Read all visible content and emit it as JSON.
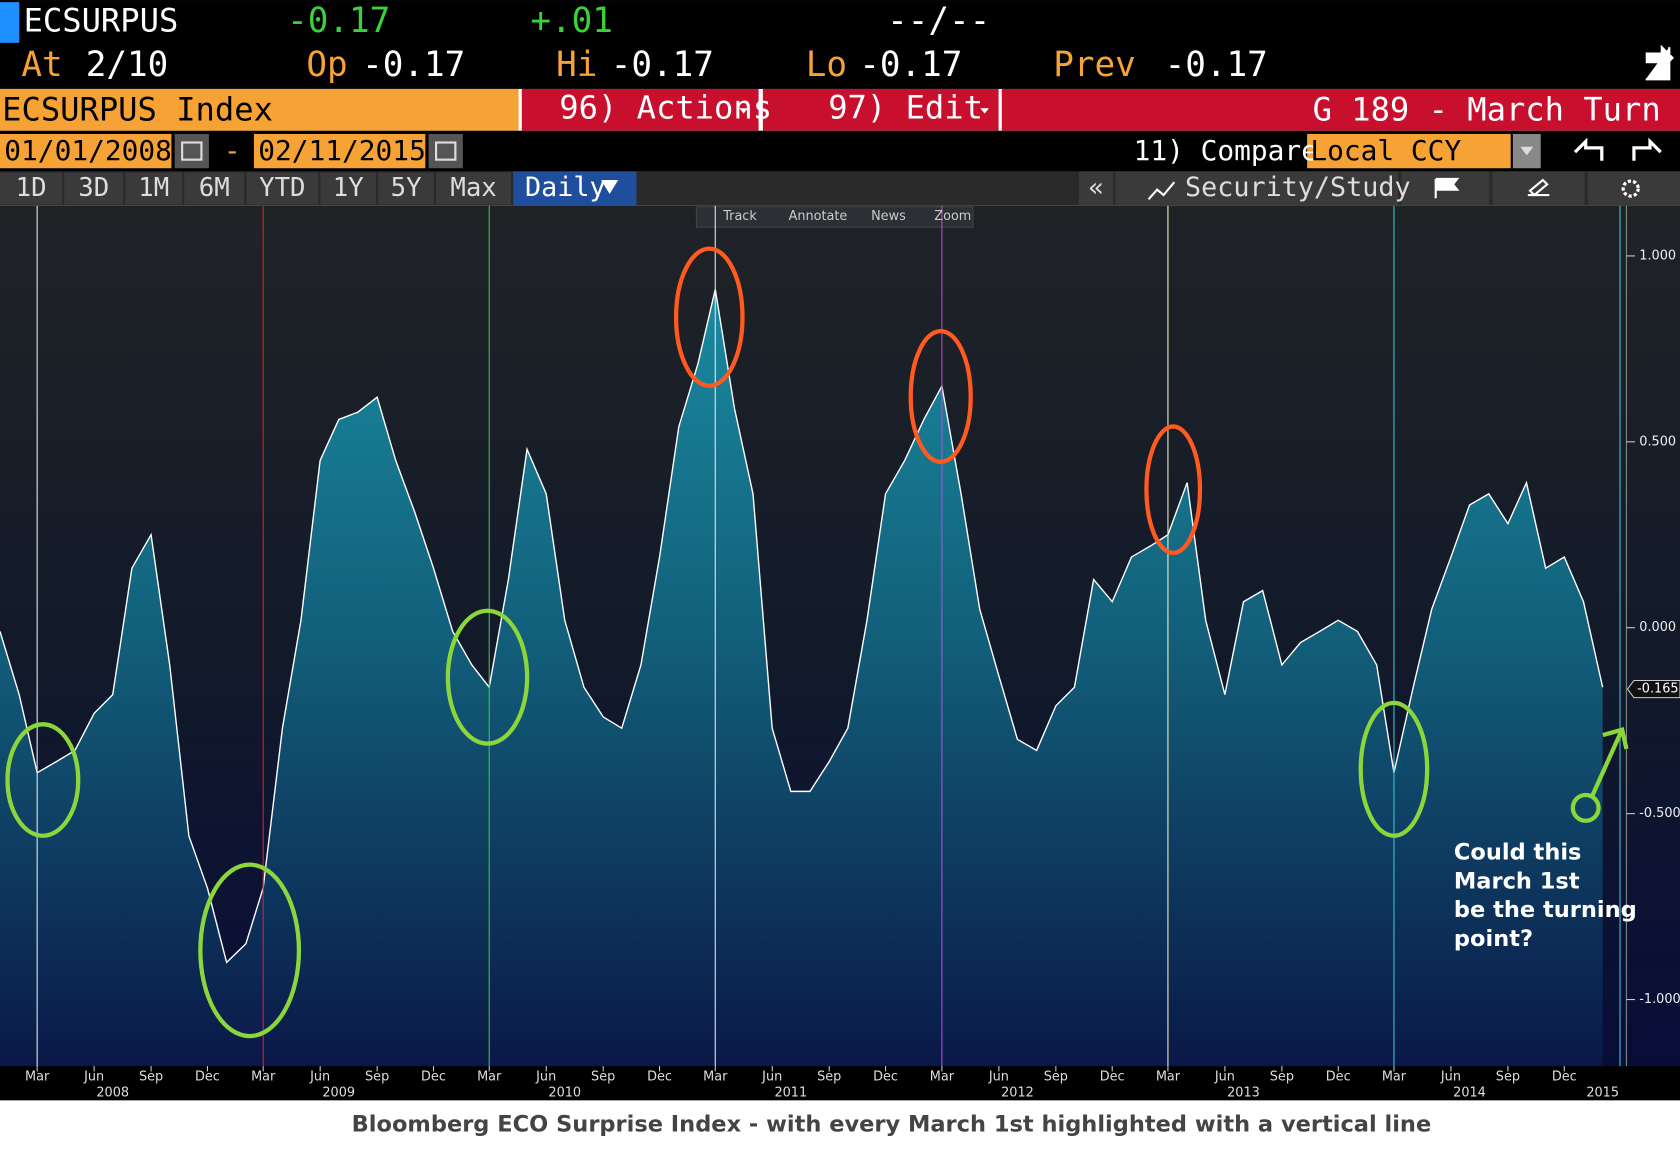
{
  "header": {
    "ticker": "ECSURPUS",
    "last": "-0.17",
    "change": "+.01",
    "bidask": "--/--",
    "fields": [
      {
        "label": "At",
        "value": "2/10"
      },
      {
        "label": "Op",
        "value": "-0.17"
      },
      {
        "label": "Hi",
        "value": "-0.17"
      },
      {
        "label": "Lo",
        "value": "-0.17"
      },
      {
        "label": "Prev",
        "value": "-0.17"
      }
    ]
  },
  "menu": {
    "security": "ECSURPUS Index",
    "actions": "96) Actions",
    "edit": "97) Edit",
    "page": "G 189 - March Turn"
  },
  "dates": {
    "start": "01/01/2008",
    "separator": "-",
    "end": "02/11/2015",
    "compare": "11) Compare",
    "currency": "Local CCY"
  },
  "periods": [
    "1D",
    "3D",
    "1M",
    "6M",
    "YTD",
    "1Y",
    "5Y",
    "Max"
  ],
  "frequency": "Daily",
  "collapse": "«",
  "study": "Security/Study",
  "toolbar": [
    "Track",
    "Annotate",
    "News",
    "Zoom"
  ],
  "caption": "Bloomberg ECO Surprise Index - with every March 1st highlighted with a vertical line",
  "chart_data": {
    "type": "area",
    "x": [
      "2008-01",
      "2008-02",
      "2008-03",
      "2008-04",
      "2008-05",
      "2008-06",
      "2008-07",
      "2008-08",
      "2008-09",
      "2008-10",
      "2008-11",
      "2008-12",
      "2009-01",
      "2009-02",
      "2009-03",
      "2009-04",
      "2009-05",
      "2009-06",
      "2009-07",
      "2009-08",
      "2009-09",
      "2009-10",
      "2009-11",
      "2009-12",
      "2010-01",
      "2010-02",
      "2010-03",
      "2010-04",
      "2010-05",
      "2010-06",
      "2010-07",
      "2010-08",
      "2010-09",
      "2010-10",
      "2010-11",
      "2010-12",
      "2011-01",
      "2011-02",
      "2011-03",
      "2011-04",
      "2011-05",
      "2011-06",
      "2011-07",
      "2011-08",
      "2011-09",
      "2011-10",
      "2011-11",
      "2011-12",
      "2012-01",
      "2012-02",
      "2012-03",
      "2012-04",
      "2012-05",
      "2012-06",
      "2012-07",
      "2012-08",
      "2012-09",
      "2012-10",
      "2012-11",
      "2012-12",
      "2013-01",
      "2013-02",
      "2013-03",
      "2013-04",
      "2013-05",
      "2013-06",
      "2013-07",
      "2013-08",
      "2013-09",
      "2013-10",
      "2013-11",
      "2013-12",
      "2014-01",
      "2014-02",
      "2014-03",
      "2014-04",
      "2014-05",
      "2014-06",
      "2014-07",
      "2014-08",
      "2014-09",
      "2014-10",
      "2014-11",
      "2014-12",
      "2015-01",
      "2015-02"
    ],
    "series": [
      {
        "color": "#ffffff",
        "fill": "#1b7f93",
        "values": [
          -0.01,
          -0.18,
          -0.39,
          -0.36,
          -0.33,
          -0.23,
          -0.18,
          0.16,
          0.25,
          -0.1,
          -0.56,
          -0.7,
          -0.9,
          -0.85,
          -0.7,
          -0.27,
          0.02,
          0.45,
          0.56,
          0.58,
          0.62,
          0.45,
          0.31,
          0.16,
          -0.01,
          -0.1,
          -0.16,
          0.13,
          0.48,
          0.36,
          0.02,
          -0.16,
          -0.24,
          -0.27,
          -0.1,
          0.19,
          0.54,
          0.71,
          0.91,
          0.59,
          0.36,
          -0.27,
          -0.44,
          -0.44,
          -0.36,
          -0.27,
          0.02,
          0.36,
          0.45,
          0.56,
          0.65,
          0.36,
          0.05,
          -0.13,
          -0.3,
          -0.33,
          -0.21,
          -0.16,
          0.13,
          0.07,
          0.19,
          0.22,
          0.25,
          0.39,
          0.02,
          -0.18,
          0.07,
          0.1,
          -0.1,
          -0.04,
          -0.01,
          0.02,
          -0.01,
          -0.1,
          -0.39,
          -0.16,
          0.05,
          0.19,
          0.33,
          0.36,
          0.28,
          0.39,
          0.16,
          0.19,
          0.07,
          -0.16
        ]
      }
    ],
    "xlim": [
      "2008-01",
      "2015-03"
    ],
    "ylim": [
      -1.179,
      1.135
    ],
    "yticks": [
      {
        "value": 1,
        "label": "1.000"
      },
      {
        "value": 0.5,
        "label": "0.500"
      },
      {
        "value": 0,
        "label": "0.000"
      },
      {
        "value": -0.5,
        "label": "-0.500"
      },
      {
        "value": -1,
        "label": "-1.000"
      }
    ],
    "xticks": [
      {
        "value": "2008-03",
        "label": "Mar"
      },
      {
        "value": "2008-06",
        "label": "Jun"
      },
      {
        "value": "2008-09",
        "label": "Sep"
      },
      {
        "value": "2008-12",
        "label": "Dec"
      },
      {
        "value": "2009-03",
        "label": "Mar"
      },
      {
        "value": "2009-06",
        "label": "Jun"
      },
      {
        "value": "2009-09",
        "label": "Sep"
      },
      {
        "value": "2009-12",
        "label": "Dec"
      },
      {
        "value": "2010-03",
        "label": "Mar"
      },
      {
        "value": "2010-06",
        "label": "Jun"
      },
      {
        "value": "2010-09",
        "label": "Sep"
      },
      {
        "value": "2010-12",
        "label": "Dec"
      },
      {
        "value": "2011-03",
        "label": "Mar"
      },
      {
        "value": "2011-06",
        "label": "Jun"
      },
      {
        "value": "2011-09",
        "label": "Sep"
      },
      {
        "value": "2011-12",
        "label": "Dec"
      },
      {
        "value": "2012-03",
        "label": "Mar"
      },
      {
        "value": "2012-06",
        "label": "Jun"
      },
      {
        "value": "2012-09",
        "label": "Sep"
      },
      {
        "value": "2012-12",
        "label": "Dec"
      },
      {
        "value": "2013-03",
        "label": "Mar"
      },
      {
        "value": "2013-06",
        "label": "Jun"
      },
      {
        "value": "2013-09",
        "label": "Sep"
      },
      {
        "value": "2013-12",
        "label": "Dec"
      },
      {
        "value": "2014-03",
        "label": "Mar"
      },
      {
        "value": "2014-06",
        "label": "Jun"
      },
      {
        "value": "2014-09",
        "label": "Sep"
      },
      {
        "value": "2014-12",
        "label": "Dec"
      }
    ],
    "year_ticks": [
      {
        "value": "2008-07",
        "label": "2008"
      },
      {
        "value": "2009-07",
        "label": "2009"
      },
      {
        "value": "2010-07",
        "label": "2010"
      },
      {
        "value": "2011-07",
        "label": "2011"
      },
      {
        "value": "2012-07",
        "label": "2012"
      },
      {
        "value": "2013-07",
        "label": "2013"
      },
      {
        "value": "2014-07",
        "label": "2014"
      },
      {
        "value": "2015-02",
        "label": "2015"
      }
    ],
    "vlines": [
      {
        "x": "2008-03",
        "color": "#e8e8e8"
      },
      {
        "x": "2009-03",
        "color": "#e02020"
      },
      {
        "x": "2010-03",
        "color": "#33cc33"
      },
      {
        "x": "2011-03",
        "color": "#e8e8e8"
      },
      {
        "x": "2012-03",
        "color": "#b44fd0"
      },
      {
        "x": "2013-03",
        "color": "#f4eec0"
      },
      {
        "x": "2014-03",
        "color": "#38c6d8"
      },
      {
        "x": "2015-03",
        "color": "#38c6d8"
      }
    ],
    "last_value": {
      "value": -0.165,
      "label": "-0.165"
    },
    "annotation": [
      "Could this",
      "March 1st",
      "be the turning",
      "point?"
    ]
  }
}
